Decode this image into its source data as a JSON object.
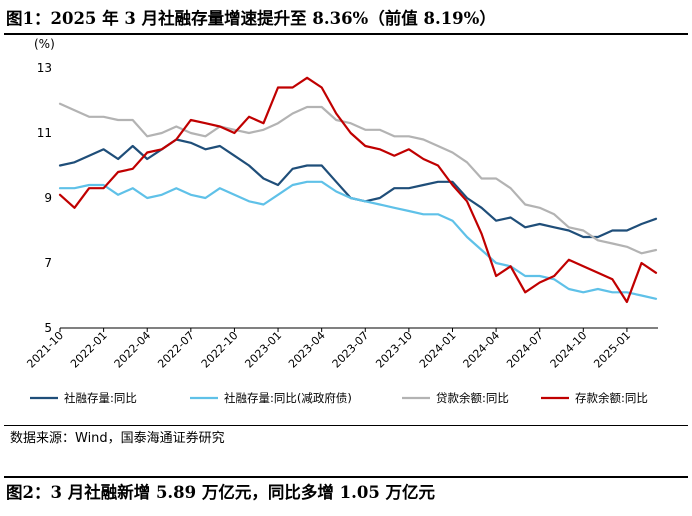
{
  "figure1": {
    "title": "图1：2025 年 3 月社融存量增速提升至 8.36%（前值 8.19%）"
  },
  "source": "数据来源：Wind，国泰海通证券研究",
  "figure2": {
    "title": "图2：3 月社融新增 5.89 万亿元，同比多增 1.05 万亿元"
  },
  "chart_data": {
    "type": "line",
    "unit_label": "(%)",
    "ylim": [
      5,
      13
    ],
    "yticks": [
      5,
      7,
      9,
      11,
      13
    ],
    "x_tick_labels": [
      "2021-10",
      "2022-01",
      "2022-04",
      "2022-07",
      "2022-10",
      "2023-01",
      "2023-04",
      "2023-07",
      "2023-10",
      "2024-01",
      "2024-04",
      "2024-07",
      "2024-10",
      "2025-01"
    ],
    "x": [
      "2021-10",
      "2021-11",
      "2021-12",
      "2022-01",
      "2022-02",
      "2022-03",
      "2022-04",
      "2022-05",
      "2022-06",
      "2022-07",
      "2022-08",
      "2022-09",
      "2022-10",
      "2022-11",
      "2022-12",
      "2023-01",
      "2023-02",
      "2023-03",
      "2023-04",
      "2023-05",
      "2023-06",
      "2023-07",
      "2023-08",
      "2023-09",
      "2023-10",
      "2023-11",
      "2023-12",
      "2024-01",
      "2024-02",
      "2024-03",
      "2024-04",
      "2024-05",
      "2024-06",
      "2024-07",
      "2024-08",
      "2024-09",
      "2024-10",
      "2024-11",
      "2024-12",
      "2025-01",
      "2025-02",
      "2025-03"
    ],
    "grid": false,
    "legend_position": "bottom",
    "series": [
      {
        "name": "社融存量:同比",
        "color": "#1f4e79",
        "values": [
          10.0,
          10.1,
          10.3,
          10.5,
          10.2,
          10.6,
          10.2,
          10.5,
          10.8,
          10.7,
          10.5,
          10.6,
          10.3,
          10.0,
          9.6,
          9.4,
          9.9,
          10.0,
          10.0,
          9.5,
          9.0,
          8.9,
          9.0,
          9.3,
          9.3,
          9.4,
          9.5,
          9.5,
          9.0,
          8.7,
          8.3,
          8.4,
          8.1,
          8.2,
          8.1,
          8.0,
          7.8,
          7.8,
          8.0,
          8.0,
          8.2,
          8.36
        ]
      },
      {
        "name": "社融存量:同比(减政府债)",
        "color": "#5fc1e8",
        "values": [
          9.3,
          9.3,
          9.4,
          9.4,
          9.1,
          9.3,
          9.0,
          9.1,
          9.3,
          9.1,
          9.0,
          9.3,
          9.1,
          8.9,
          8.8,
          9.1,
          9.4,
          9.5,
          9.5,
          9.2,
          9.0,
          8.9,
          8.8,
          8.7,
          8.6,
          8.5,
          8.5,
          8.3,
          7.8,
          7.4,
          7.0,
          6.9,
          6.6,
          6.6,
          6.5,
          6.2,
          6.1,
          6.2,
          6.1,
          6.1,
          6.0,
          5.9
        ]
      },
      {
        "name": "贷款余额:同比",
        "color": "#b3b3b3",
        "values": [
          11.9,
          11.7,
          11.5,
          11.5,
          11.4,
          11.4,
          10.9,
          11.0,
          11.2,
          11.0,
          10.9,
          11.2,
          11.1,
          11.0,
          11.1,
          11.3,
          11.6,
          11.8,
          11.8,
          11.4,
          11.3,
          11.1,
          11.1,
          10.9,
          10.9,
          10.8,
          10.6,
          10.4,
          10.1,
          9.6,
          9.6,
          9.3,
          8.8,
          8.7,
          8.5,
          8.1,
          8.0,
          7.7,
          7.6,
          7.5,
          7.3,
          7.4
        ]
      },
      {
        "name": "存款余额:同比",
        "color": "#c00000",
        "values": [
          9.1,
          8.7,
          9.3,
          9.3,
          9.8,
          9.9,
          10.4,
          10.5,
          10.8,
          11.4,
          11.3,
          11.2,
          11.0,
          11.5,
          11.3,
          12.4,
          12.4,
          12.7,
          12.4,
          11.6,
          11.0,
          10.6,
          10.5,
          10.3,
          10.5,
          10.2,
          10.0,
          9.4,
          8.9,
          7.9,
          6.6,
          6.9,
          6.1,
          6.4,
          6.6,
          7.1,
          6.9,
          6.7,
          6.5,
          5.8,
          7.0,
          6.7
        ]
      }
    ]
  }
}
